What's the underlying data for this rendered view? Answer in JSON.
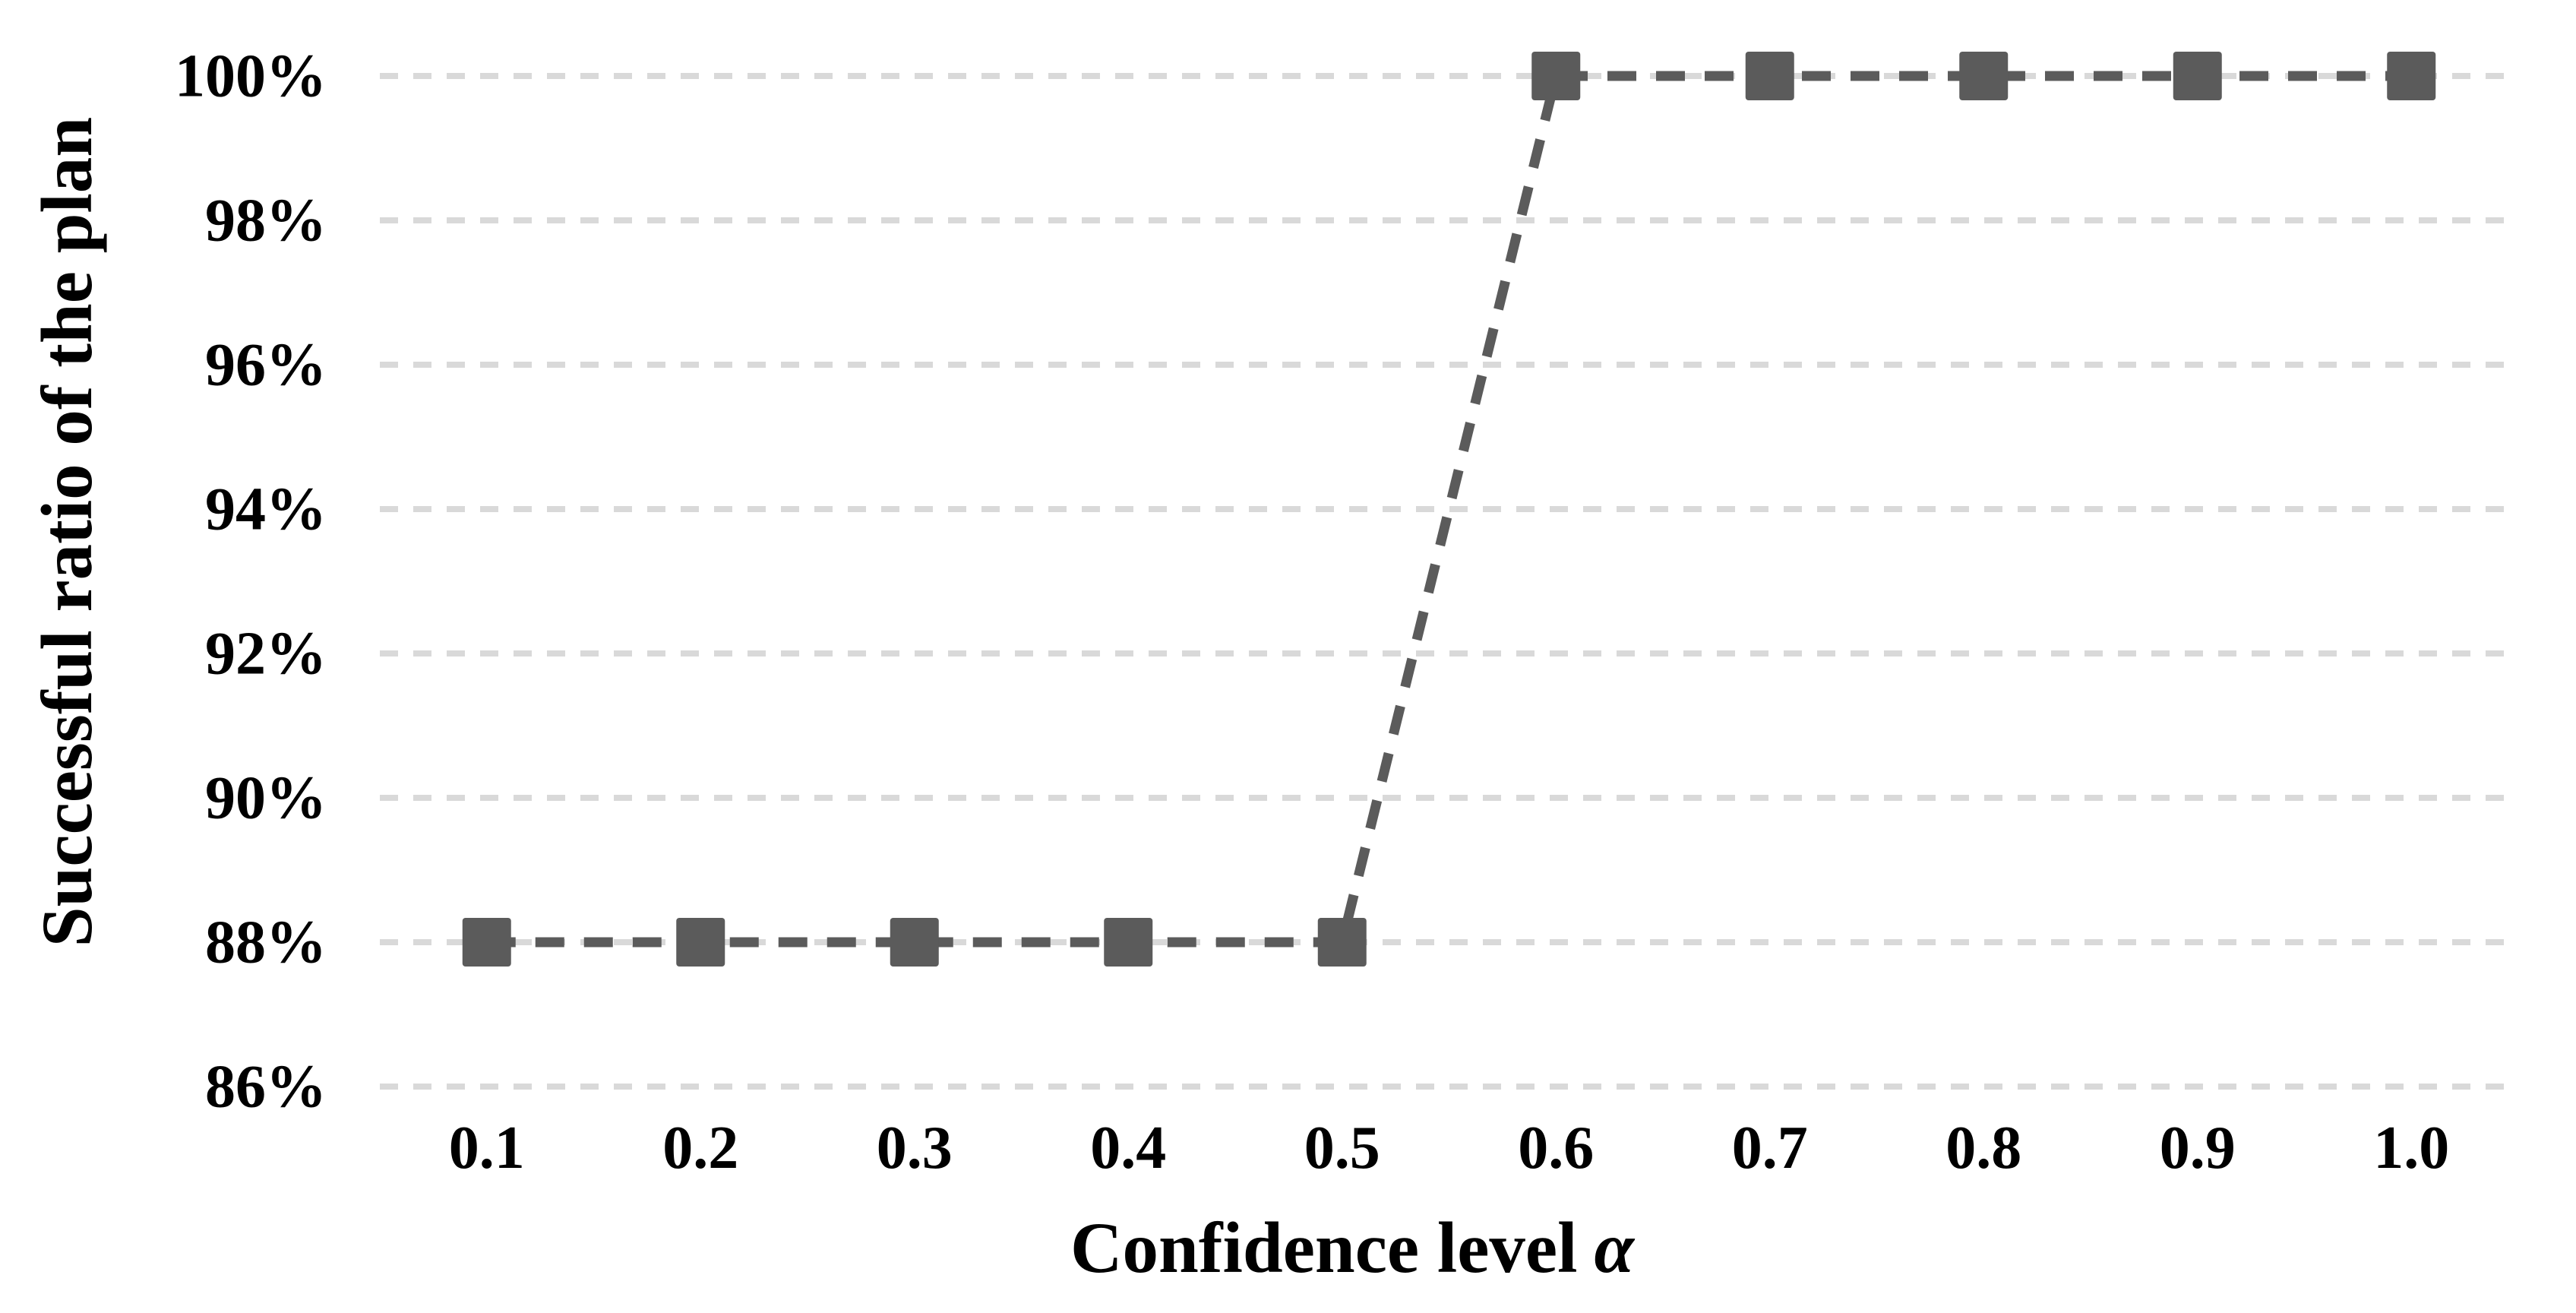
{
  "figure": {
    "background_color": "#FFFFFF",
    "text_color": "#000000",
    "grid_color": "#D9D9D9",
    "series_color": "#5B5B5B"
  },
  "axes": {
    "x": {
      "title_text": "Confidence level",
      "title_symbol": "α"
    },
    "y": {
      "title": "Successful ratio of the plan"
    }
  },
  "chart_data": {
    "type": "line",
    "title": "",
    "xlabel": "Confidence level α",
    "ylabel": "Successful ratio of the plan",
    "categories": [
      "0.1",
      "0.2",
      "0.3",
      "0.4",
      "0.5",
      "0.6",
      "0.7",
      "0.8",
      "0.9",
      "1.0"
    ],
    "series": [
      {
        "name": "Successful ratio of the plan",
        "values": [
          88,
          88,
          88,
          88,
          88,
          100,
          100,
          100,
          100,
          100
        ]
      }
    ],
    "y_ticks": [
      86,
      88,
      90,
      92,
      94,
      96,
      98,
      100
    ],
    "y_tick_labels": [
      "86%",
      "88%",
      "90%",
      "92%",
      "94%",
      "96%",
      "98%",
      "100%"
    ],
    "ylim": [
      86,
      100
    ],
    "grid": "horizontal dashed",
    "legend_position": "none",
    "line_style": "dashed",
    "marker": "square",
    "line_color": "#5B5B5B",
    "marker_color": "#5B5B5B",
    "grid_line_color": "#D9D9D9"
  }
}
